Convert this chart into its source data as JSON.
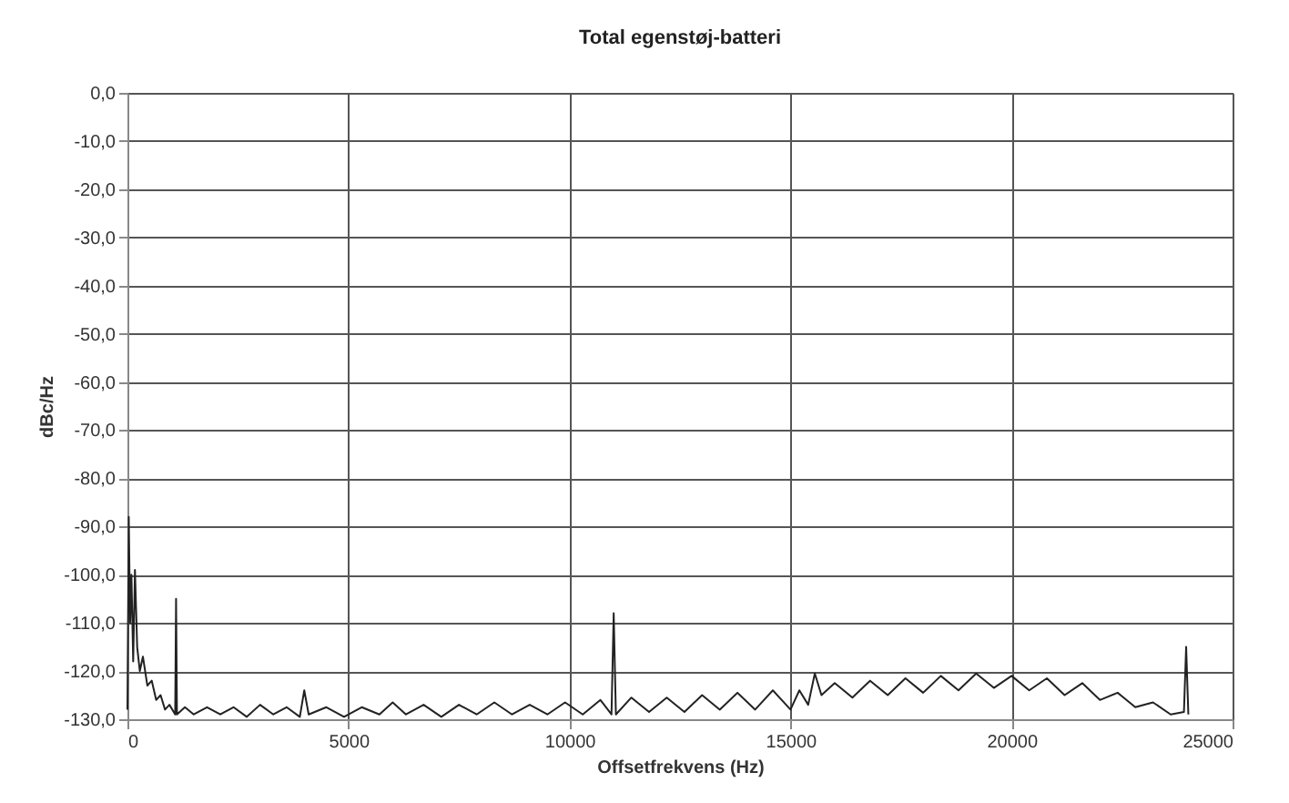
{
  "chart_data": {
    "type": "line",
    "title": "Total egenstøj-batteri",
    "xlabel": "Offsetfrekvens (Hz)",
    "ylabel": "dBc/Hz",
    "x": [
      0,
      30,
      60,
      90,
      130,
      170,
      220,
      280,
      350,
      450,
      550,
      650,
      750,
      850,
      950,
      1080,
      1100,
      1120,
      1300,
      1500,
      1800,
      2100,
      2400,
      2700,
      3000,
      3300,
      3600,
      3900,
      4000,
      4100,
      4500,
      4900,
      5300,
      5700,
      6000,
      6300,
      6700,
      7100,
      7500,
      7900,
      8300,
      8700,
      9100,
      9500,
      9900,
      10300,
      10700,
      10950,
      11000,
      11050,
      11400,
      11800,
      12200,
      12600,
      13000,
      13400,
      13800,
      14200,
      14600,
      15000,
      15200,
      15400,
      15550,
      15700,
      16000,
      16400,
      16800,
      17200,
      17600,
      18000,
      18400,
      18800,
      19200,
      19600,
      20000,
      20400,
      20800,
      21200,
      21600,
      22000,
      22400,
      22800,
      23200,
      23600,
      23900,
      23950,
      24000
    ],
    "series": [
      {
        "color": "#222222",
        "values": [
          -128,
          -88,
          -110,
          -100,
          -118,
          -99,
          -115,
          -120,
          -117,
          -123,
          -122,
          -126,
          -125,
          -128,
          -127,
          -129,
          -105,
          -129,
          -127.5,
          -129,
          -127.5,
          -129,
          -127.5,
          -129.5,
          -127,
          -129,
          -127.5,
          -129.5,
          -124,
          -129,
          -127.5,
          -129.5,
          -127.5,
          -129,
          -126.5,
          -129,
          -127,
          -129.5,
          -127,
          -129,
          -126.5,
          -129,
          -127,
          -129,
          -126.5,
          -129,
          -126,
          -129,
          -108,
          -129,
          -125.5,
          -128.5,
          -125.5,
          -128.5,
          -125,
          -128,
          -124.5,
          -128,
          -124,
          -128,
          -124,
          -127,
          -120.5,
          -125,
          -122.5,
          -125.5,
          -122,
          -125,
          -121.5,
          -124.5,
          -121,
          -124,
          -120.5,
          -123.5,
          -121,
          -124,
          -121.5,
          -125,
          -122.5,
          -126,
          -124.5,
          -127.5,
          -126.5,
          -129,
          -128.5,
          -115,
          -129
        ]
      }
    ],
    "xlim": [
      0,
      25000
    ],
    "xticks": [
      0,
      5000,
      10000,
      15000,
      20000,
      25000
    ],
    "ylim": [
      -130,
      0
    ],
    "yticks": [
      {
        "value": 0,
        "label": "0,0"
      },
      {
        "value": -10,
        "label": "-10,0"
      },
      {
        "value": -20,
        "label": "-20,0"
      },
      {
        "value": -30,
        "label": "-30,0"
      },
      {
        "value": -40,
        "label": "-40,0"
      },
      {
        "value": -50,
        "label": "-50,0"
      },
      {
        "value": -60,
        "label": "-60,0"
      },
      {
        "value": -70,
        "label": "-70,0"
      },
      {
        "value": -80,
        "label": "-80,0"
      },
      {
        "value": -90,
        "label": "-90,0"
      },
      {
        "value": -100,
        "label": "-100,0"
      },
      {
        "value": -110,
        "label": "-110,0"
      },
      {
        "value": -120,
        "label": "-120,0"
      },
      {
        "value": -130,
        "label": "-130,0"
      }
    ],
    "grid": true,
    "marker": "none",
    "line_style": "solid"
  }
}
